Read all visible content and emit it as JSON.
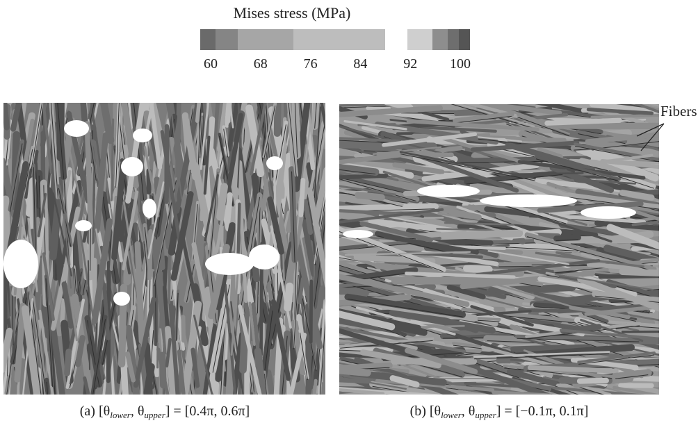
{
  "colorbar": {
    "title": "Mises stress (MPa)",
    "ticks": [
      60,
      68,
      76,
      84,
      92,
      100
    ]
  },
  "annotation": "Fibers",
  "panels": [
    {
      "label": "(a)",
      "theta1": "[θ",
      "sub1": "lower",
      "theta2": ", θ",
      "sub2": "upper",
      "range": "] = [0.4π, 0.6π]"
    },
    {
      "label": "(b)",
      "theta1": "[θ",
      "sub1": "lower",
      "theta2": ", θ",
      "sub2": "upper",
      "range": "] = [−0.1π, 0.1π]"
    }
  ]
}
